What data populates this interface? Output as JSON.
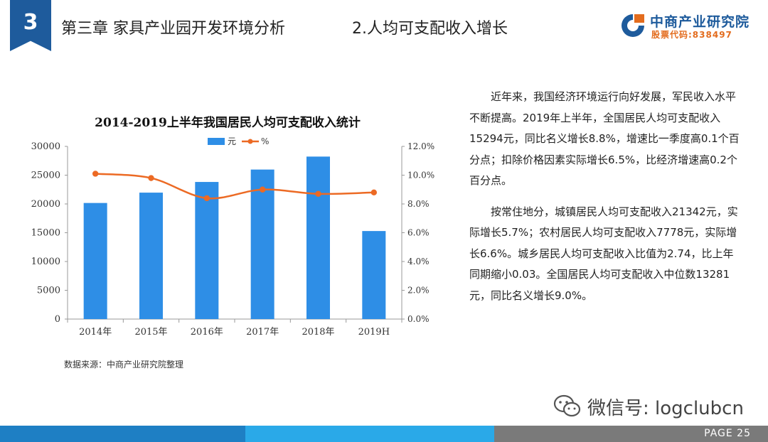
{
  "header": {
    "chapter_number": "3",
    "chapter_title": "第三章 家具产业园开发环境分析",
    "section_title": "2.人均可支配收入增长",
    "logo_name": "中商产业研究院",
    "logo_code": "股票代码:838497"
  },
  "chart_data": {
    "type": "bar+line",
    "title": "2014-2019上半年我国居民人均可支配收入统计",
    "categories": [
      "2014年",
      "2015年",
      "2016年",
      "2017年",
      "2018年",
      "2019H"
    ],
    "series": [
      {
        "name": "元",
        "type": "bar",
        "axis": "left",
        "color": "#2e8ee6",
        "values": [
          20167,
          21966,
          23821,
          25974,
          28228,
          15294
        ]
      },
      {
        "name": "%",
        "type": "line",
        "axis": "right",
        "color": "#ec6a24",
        "values": [
          10.1,
          9.8,
          8.4,
          9.0,
          8.7,
          8.8
        ]
      }
    ],
    "y_left": {
      "min": 0,
      "max": 30000,
      "ticks": [
        "0",
        "5000",
        "10000",
        "15000",
        "20000",
        "25000",
        "30000"
      ]
    },
    "y_right": {
      "min": 0,
      "max": 12,
      "ticks": [
        "0.0%",
        "2.0%",
        "4.0%",
        "6.0%",
        "8.0%",
        "10.0%",
        "12.0%"
      ]
    },
    "legend_position": "top-center",
    "grid": false
  },
  "source_note": "数据来源：中商产业研究院整理",
  "paragraphs": [
    "近年来，我国经济环境运行向好发展，军民收入水平不断提高。2019年上半年，全国居民人均可支配收入15294元，同比名义增长8.8%，增速比一季度高0.1个百分点；扣除价格因素实际增长6.5%，比经济增速高0.2个百分点。",
    "按常住地分，城镇居民人均可支配收入21342元，实际增长5.7%；农村居民人均可支配收入7778元，实际增长6.6%。城乡居民人均可支配收入比值为2.74，比上年同期缩小0.03。全国居民人均可支配收入中位数13281元，同比名义增长9.0%。"
  ],
  "wechat": {
    "text": "微信号: logclubcn",
    "icon": "wechat-icon"
  },
  "footer": {
    "page_label": "PAGE  25"
  },
  "colors": {
    "brand_blue": "#1e5b9c",
    "bar_blue": "#2e8ee6",
    "line_orange": "#ec6a24"
  }
}
